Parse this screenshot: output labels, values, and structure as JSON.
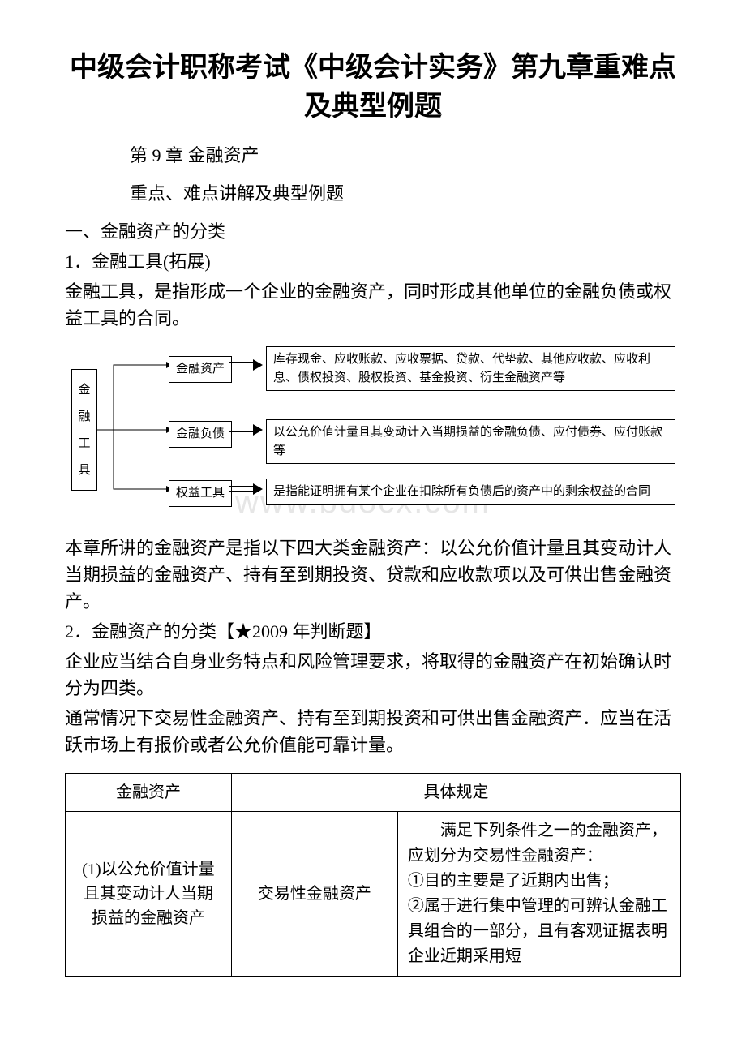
{
  "title": "中级会计职称考试《中级会计实务》第九章重难点及典型例题",
  "subtitle1": "第 9 章 金融资产",
  "subtitle2": "重点、难点讲解及典型例题",
  "section1_heading": "一、金融资产的分类",
  "item1_heading": "1．金融工具(拓展)",
  "item1_text": "金融工具，是指形成一个企业的金融资产，同时形成其他单位的金融负债或权益工具的合同。",
  "diagram": {
    "root_chars": [
      "金",
      "融",
      "工",
      "具"
    ],
    "branches": [
      {
        "label": "金融资产",
        "desc": "库存现金、应收账款、应收票据、贷款、代垫款、其他应收款、应收利息、债权投资、股权投资、基金投资、衍生金融资产等"
      },
      {
        "label": "金融负债",
        "desc": "以公允价值计量且其变动计入当期损益的金融负债、应付债券、应付账款等"
      },
      {
        "label": "权益工具",
        "desc": "是指能证明拥有某个企业在扣除所有负债后的资产中的剩余权益的合同"
      }
    ]
  },
  "watermark": "www.bdocx.com",
  "para2": "本章所讲的金融资产是指以下四大类金融资产：以公允价值计量且其变动计人当期损益的金融资产、持有至到期投资、贷款和应收款项以及可供出售金融资产。",
  "item2_heading": "2．金融资产的分类【★2009 年判断题】",
  "item2_text1": "企业应当结合自身业务特点和风险管理要求，将取得的金融资产在初始确认时分为四类。",
  "item2_text2": "通常情况下交易性金融资产、持有至到期投资和可供出售金融资产．应当在活跃市场上有报价或者公允价值能可靠计量。",
  "table": {
    "header": {
      "col1": "金融资产",
      "col2": "具体规定"
    },
    "row1": {
      "col1": "(1)以公允价值计量且其变动计人当期损益的金融资产",
      "col2": "交易性金融资产",
      "col3": "　　满足下列条件之一的金融资产，应划分为交易性金融资产：\n①目的主要是了近期内出售；\n②属于进行集中管理的可辨认金融工具组合的一部分，且有客观证据表明企业近期采用短"
    }
  },
  "colors": {
    "text": "#000000",
    "background": "#ffffff",
    "border": "#000000",
    "watermark": "#e6e6e6"
  }
}
